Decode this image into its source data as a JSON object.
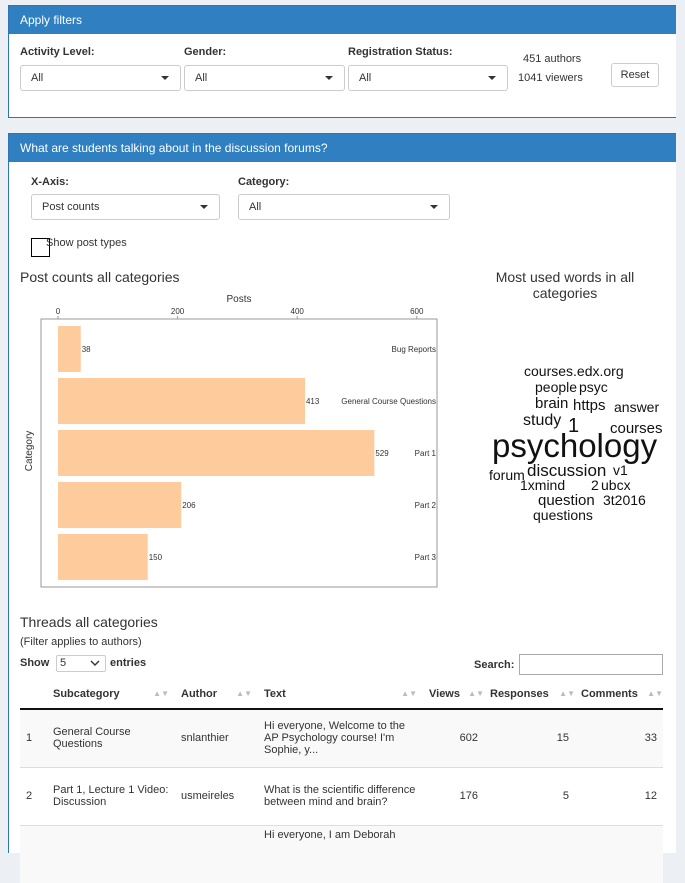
{
  "filters": {
    "header": "Apply filters",
    "activity_label": "Activity Level:",
    "activity_value": "All",
    "gender_label": "Gender:",
    "gender_value": "All",
    "registration_label": "Registration Status:",
    "registration_value": "All",
    "authors": "451 authors",
    "viewers": "1041 viewers",
    "reset_label": "Reset"
  },
  "forum": {
    "header": "What are students talking about in the discussion forums?",
    "xaxis_label": "X-Axis:",
    "xaxis_value": "Post counts",
    "category_label": "Category:",
    "category_value": "All",
    "show_post_types": "Show post types",
    "chart_title": "Post counts all categories",
    "wordcloud_title": "Most used words in all categories"
  },
  "chart_data": {
    "type": "bar",
    "orientation": "horizontal",
    "title": "Post counts all categories",
    "xlabel": "Posts",
    "ylabel": "Category",
    "xlim": [
      0,
      640
    ],
    "xticks": [
      0,
      200,
      400,
      600
    ],
    "categories": [
      "Bug Reports",
      "General Course Questions",
      "Part 1",
      "Part 2",
      "Part 3"
    ],
    "values": [
      38,
      413,
      529,
      206,
      150
    ],
    "bar_color": "#fdcb9c",
    "grid": false
  },
  "wordcloud": [
    {
      "text": "courses.edx.org",
      "size": 14
    },
    {
      "text": "people",
      "size": 14
    },
    {
      "text": "psyc",
      "size": 14
    },
    {
      "text": "brain",
      "size": 15
    },
    {
      "text": "https",
      "size": 15
    },
    {
      "text": "answer",
      "size": 14
    },
    {
      "text": "study",
      "size": 16
    },
    {
      "text": "1",
      "size": 20
    },
    {
      "text": "courses",
      "size": 15
    },
    {
      "text": "psychology",
      "size": 33
    },
    {
      "text": "forum",
      "size": 14
    },
    {
      "text": "discussion",
      "size": 17
    },
    {
      "text": "v1",
      "size": 14
    },
    {
      "text": "1xmind",
      "size": 14
    },
    {
      "text": "2",
      "size": 14
    },
    {
      "text": "ubcx",
      "size": 14
    },
    {
      "text": "question",
      "size": 15
    },
    {
      "text": "3t2016",
      "size": 14
    },
    {
      "text": "questions",
      "size": 14
    }
  ],
  "threads": {
    "title": "Threads all categories",
    "note": "(Filter applies to authors)",
    "show_label": "Show",
    "entries_value": "5",
    "entries_label": "entries",
    "search_label": "Search:",
    "search_value": "",
    "columns": [
      "",
      "Subcategory",
      "Author",
      "Text",
      "Views",
      "Responses",
      "Comments"
    ],
    "rows": [
      {
        "index": "1",
        "subcategory": "General Course Questions",
        "author": "snlanthier",
        "text": "Hi everyone, Welcome to the AP Psychology course! I'm Sophie, y...",
        "views": "602",
        "responses": "15",
        "comments": "33"
      },
      {
        "index": "2",
        "subcategory": "Part 1, Lecture 1 Video: Discussion",
        "author": "usmeireles",
        "text": "What is the scientific difference between mind and brain?",
        "views": "176",
        "responses": "5",
        "comments": "12"
      },
      {
        "index": "",
        "subcategory": "",
        "author": "",
        "text": "Hi everyone, I am Deborah",
        "views": "",
        "responses": "",
        "comments": ""
      }
    ]
  }
}
